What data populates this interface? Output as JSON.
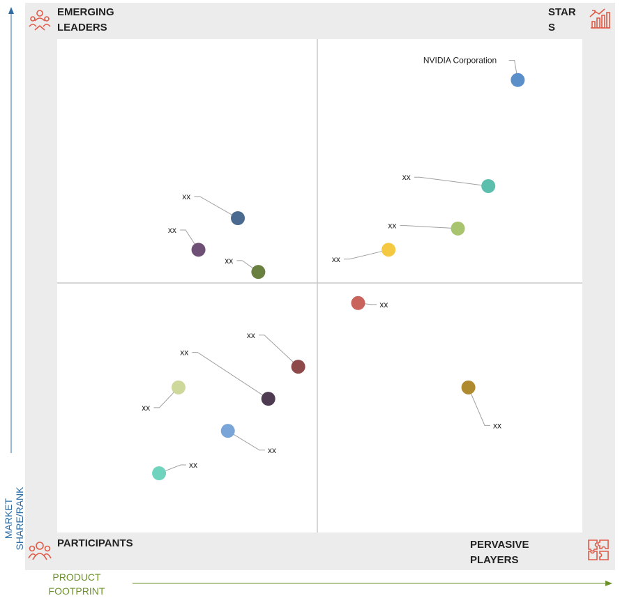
{
  "quadrants": {
    "top_left": "EMERGING LEADERS",
    "top_right": "STARS",
    "bottom_left": "PARTICIPANTS",
    "bottom_right": "PERVASIVE PLAYERS"
  },
  "icons": {
    "top_left": "team-leader-icon",
    "top_right": "trophy-chart-icon",
    "bottom_left": "people-group-icon",
    "bottom_right": "puzzle-icon"
  },
  "axes": {
    "y_title": "MARKET SHARE/RANK",
    "x_title": "PRODUCT FOOTPRINT",
    "y_color": "#2e6da4",
    "x_color": "#6b8f2a"
  },
  "accent_color": "#e05a47",
  "chart_data": {
    "type": "scatter",
    "title": "",
    "xlabel": "PRODUCT FOOTPRINT",
    "ylabel": "MARKET SHARE/RANK",
    "grid": false,
    "points": [
      {
        "name": "NVIDIA Corporation",
        "x": 0.877,
        "y": 0.917,
        "color": "#5b8fc9",
        "lx": 0.697,
        "ly": 0.957
      },
      {
        "name": "xx",
        "x": 0.821,
        "y": 0.702,
        "color": "#5cbfae",
        "lx": 0.657,
        "ly": 0.72
      },
      {
        "name": "xx",
        "x": 0.763,
        "y": 0.616,
        "color": "#a9c46e",
        "lx": 0.63,
        "ly": 0.622
      },
      {
        "name": "xx",
        "x": 0.631,
        "y": 0.573,
        "color": "#f5c842",
        "lx": 0.523,
        "ly": 0.554
      },
      {
        "name": "xx",
        "x": 0.344,
        "y": 0.637,
        "color": "#4a6a8f",
        "lx": 0.238,
        "ly": 0.681
      },
      {
        "name": "xx",
        "x": 0.269,
        "y": 0.573,
        "color": "#6e4f75",
        "lx": 0.211,
        "ly": 0.613
      },
      {
        "name": "xx",
        "x": 0.383,
        "y": 0.528,
        "color": "#6a8040",
        "lx": 0.319,
        "ly": 0.551
      },
      {
        "name": "xx",
        "x": 0.573,
        "y": 0.465,
        "color": "#c9645c",
        "lx": 0.614,
        "ly": 0.462
      },
      {
        "name": "xx",
        "x": 0.459,
        "y": 0.336,
        "color": "#8e4a4a",
        "lx": 0.361,
        "ly": 0.4
      },
      {
        "name": "xx",
        "x": 0.402,
        "y": 0.271,
        "color": "#4e3b52",
        "lx": 0.234,
        "ly": 0.365
      },
      {
        "name": "xx",
        "x": 0.231,
        "y": 0.294,
        "color": "#cdd89b",
        "lx": 0.161,
        "ly": 0.253
      },
      {
        "name": "xx",
        "x": 0.783,
        "y": 0.294,
        "color": "#b08a2e",
        "lx": 0.83,
        "ly": 0.217
      },
      {
        "name": "xx",
        "x": 0.325,
        "y": 0.206,
        "color": "#7aa5d8",
        "lx": 0.401,
        "ly": 0.167
      },
      {
        "name": "xx",
        "x": 0.194,
        "y": 0.12,
        "color": "#6fd3bd",
        "lx": 0.251,
        "ly": 0.137
      }
    ]
  }
}
